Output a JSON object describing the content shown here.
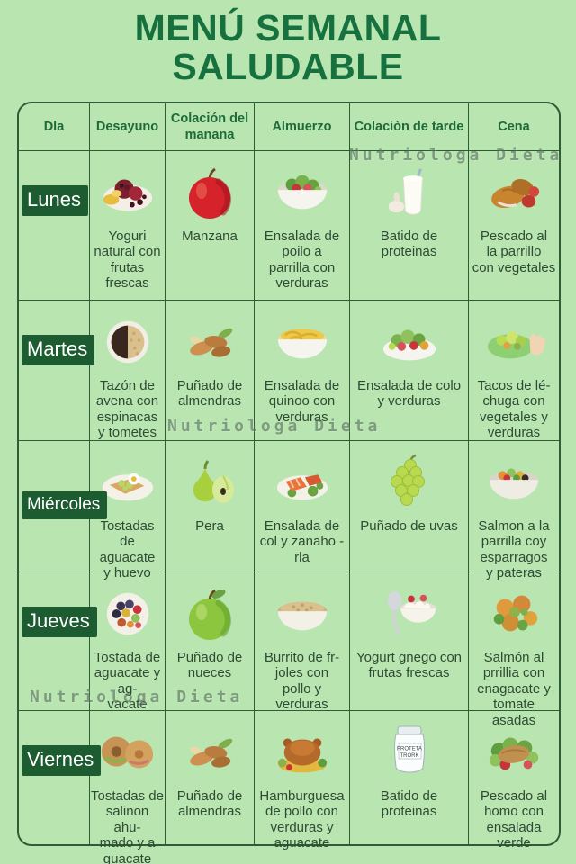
{
  "title": {
    "line1": "MENÚ SEMANAL",
    "line2": "SALUDABLE"
  },
  "watermark": {
    "text": "Nutriologa Dieta"
  },
  "colors": {
    "background": "#b9e5b0",
    "title_text": "#17713f",
    "grid_line": "#2e5c36",
    "day_box": "#1d5c31",
    "caption_text": "#2e4b35",
    "header_text": "#1e6a38",
    "watermark_text": "#5a6e60"
  },
  "table": {
    "headers": [
      "Dla",
      "Desayuno",
      "Colación del manana",
      "Almuerzo",
      "Colaciòn de tarde",
      "Cena"
    ],
    "rows": [
      {
        "day": "Lunes",
        "meals": [
          {
            "icon": "fruit-plate",
            "caption": "Yoguri\nnatural con\nfrutas\nfrescas"
          },
          {
            "icon": "red-apple",
            "caption": "Manzana"
          },
          {
            "icon": "salad-bowl",
            "caption": "Ensalada de\npoilo a\nparrilla con\nverduras"
          },
          {
            "icon": "protein-shake",
            "caption": "Batido de proteinas"
          },
          {
            "icon": "grilled-fish",
            "caption": "Pescado al\nla parrillo\ncon vegetales"
          }
        ]
      },
      {
        "day": "Martes",
        "meals": [
          {
            "icon": "oatmeal-bowl",
            "caption": "Tazón de\navena con\nespinacas\ny tometes"
          },
          {
            "icon": "almonds",
            "caption": "Puñado de\nalmendras"
          },
          {
            "icon": "noodle-bowl",
            "caption": "Ensalada de\nquinoo con\nverduras"
          },
          {
            "icon": "salad-plate",
            "caption": "Ensalada de colo\ny verduras"
          },
          {
            "icon": "lettuce-taco",
            "caption": "Tacos de lé-\nchuga con\nvegetales y\nverduras"
          }
        ]
      },
      {
        "day": "Miércoles",
        "meals": [
          {
            "icon": "avocado-toast",
            "caption": "Tostadas\nde aguacate\ny huevo"
          },
          {
            "icon": "pear",
            "caption": "Pera"
          },
          {
            "icon": "salmon-plate",
            "caption": "Ensalada de\ncol y zanaho -\nrla"
          },
          {
            "icon": "green-grapes",
            "caption": "Puñado de uvas"
          },
          {
            "icon": "veggie-soup",
            "caption": "Salmon a la\nparrilla coy\nesparragos\ny pateras"
          }
        ]
      },
      {
        "day": "Jueves",
        "meals": [
          {
            "icon": "berry-bowl",
            "caption": "Tostada de\naguacate y ag-\nvacate"
          },
          {
            "icon": "green-apple",
            "caption": "Puñado de\nnueces"
          },
          {
            "icon": "oats-bowl",
            "caption": "Burrito de fr-\njoles con\npollo y verduras"
          },
          {
            "icon": "yogurt-spoon",
            "caption": "Yogurt gnego con\nfrutas frescas"
          },
          {
            "icon": "chicken-broccoli",
            "caption": "Salmón al\nprrillia con\nenagacate y\ntomate asadas"
          }
        ]
      },
      {
        "day": "Viernes",
        "meals": [
          {
            "icon": "bagel-sandwich",
            "caption": "Tostadas de\nsalinon ahu-\nmado y a\nguacate"
          },
          {
            "icon": "almonds",
            "caption": "Puñado de\nalmendras"
          },
          {
            "icon": "roast-chicken",
            "caption": "Hamburguesa\nde pollo con\nverduras y\naguacate"
          },
          {
            "icon": "protein-jar",
            "icon_label": "PROTETA TRORK",
            "caption": "Batido de proteinas"
          },
          {
            "icon": "fish-salad",
            "caption": "Pescado al\nhomo con\nensalada\nverde"
          }
        ]
      }
    ]
  }
}
